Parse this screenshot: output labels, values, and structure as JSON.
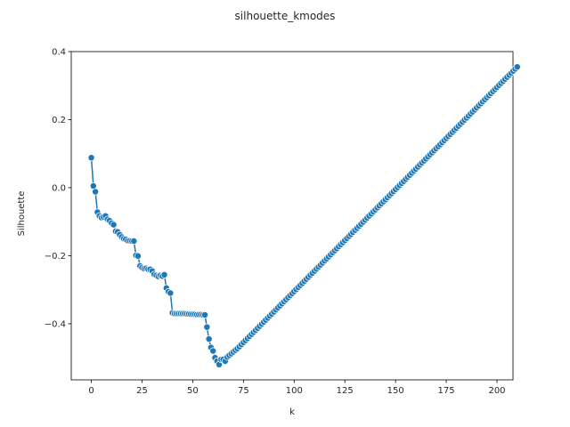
{
  "chart_data": {
    "type": "line",
    "title": "silhouette_kmodes",
    "xlabel": "k",
    "ylabel": "Silhouette",
    "xlim": [
      -9.9,
      207.9
    ],
    "ylim": [
      -0.565,
      0.4
    ],
    "xticks": [
      0,
      25,
      50,
      75,
      100,
      125,
      150,
      175,
      200
    ],
    "yticks": [
      -0.4,
      -0.2,
      0.0,
      0.2,
      0.4
    ],
    "ytick_labels": [
      "−0.4",
      "−0.2",
      "0.0",
      "0.2",
      "0.4"
    ],
    "grid": false,
    "marker": "circle",
    "color": "#1f77b4",
    "series": [
      {
        "x_start": 0,
        "x_step": 1,
        "values": [
          0.088,
          0.005,
          -0.012,
          -0.072,
          -0.083,
          -0.088,
          -0.086,
          -0.083,
          -0.093,
          -0.097,
          -0.104,
          -0.109,
          -0.128,
          -0.13,
          -0.138,
          -0.145,
          -0.15,
          -0.152,
          -0.156,
          -0.156,
          -0.157,
          -0.157,
          -0.199,
          -0.201,
          -0.23,
          -0.235,
          -0.238,
          -0.237,
          -0.24,
          -0.24,
          -0.245,
          -0.255,
          -0.258,
          -0.261,
          -0.258,
          -0.26,
          -0.256,
          -0.295,
          -0.306,
          -0.31,
          -0.368,
          -0.37,
          -0.37,
          -0.37,
          -0.37,
          -0.37,
          -0.37,
          -0.371,
          -0.371,
          -0.372,
          -0.372,
          -0.372,
          -0.373,
          -0.373,
          -0.373,
          -0.374,
          -0.374,
          -0.41,
          -0.445,
          -0.47,
          -0.48,
          -0.5,
          -0.51,
          -0.52,
          -0.505,
          -0.505,
          -0.51,
          -0.498,
          -0.493,
          -0.488,
          -0.483,
          -0.478,
          -0.473,
          -0.467,
          -0.461,
          -0.455,
          -0.449,
          -0.443,
          -0.437,
          -0.431,
          -0.425,
          -0.419,
          -0.413,
          -0.407,
          -0.401,
          -0.395,
          -0.389,
          -0.383,
          -0.377,
          -0.371,
          -0.365,
          -0.359,
          -0.353,
          -0.347,
          -0.341,
          -0.335,
          -0.329,
          -0.323,
          -0.317,
          -0.311,
          -0.305,
          -0.299,
          -0.293,
          -0.287,
          -0.281,
          -0.275,
          -0.269,
          -0.263,
          -0.257,
          -0.251,
          -0.245,
          -0.239,
          -0.233,
          -0.227,
          -0.221,
          -0.215,
          -0.209,
          -0.203,
          -0.197,
          -0.191,
          -0.185,
          -0.179,
          -0.173,
          -0.167,
          -0.161,
          -0.155,
          -0.149,
          -0.143,
          -0.137,
          -0.131,
          -0.125,
          -0.119,
          -0.113,
          -0.107,
          -0.101,
          -0.095,
          -0.089,
          -0.083,
          -0.077,
          -0.071,
          -0.065,
          -0.059,
          -0.053,
          -0.047,
          -0.041,
          -0.035,
          -0.029,
          -0.023,
          -0.017,
          -0.011,
          -0.005,
          0.001,
          0.007,
          0.013,
          0.019,
          0.025,
          0.031,
          0.037,
          0.043,
          0.049,
          0.055,
          0.061,
          0.067,
          0.073,
          0.079,
          0.085,
          0.091,
          0.097,
          0.103,
          0.109,
          0.115,
          0.121,
          0.127,
          0.133,
          0.139,
          0.145,
          0.151,
          0.157,
          0.163,
          0.169,
          0.175,
          0.181,
          0.187,
          0.193,
          0.199,
          0.205,
          0.211,
          0.217,
          0.223,
          0.229,
          0.235,
          0.241,
          0.247,
          0.253,
          0.259,
          0.265,
          0.271,
          0.277,
          0.283,
          0.289,
          0.295,
          0.301,
          0.307,
          0.313,
          0.319,
          0.325,
          0.331,
          0.337,
          0.343,
          0.349,
          0.355
        ]
      }
    ]
  }
}
